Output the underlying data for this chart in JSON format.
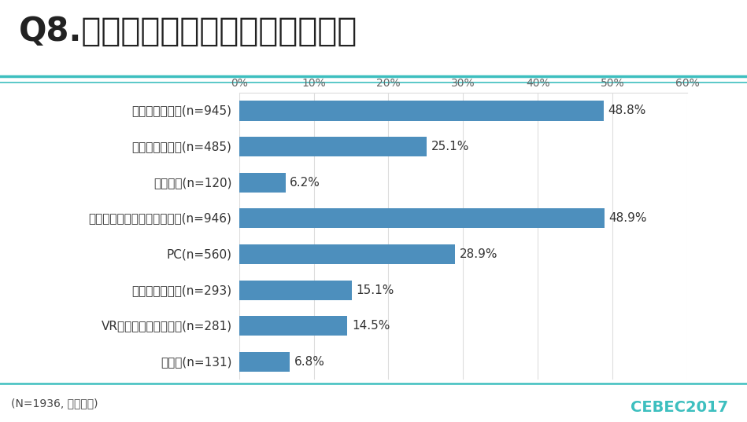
{
  "title": "Q8.従事しているプラットフォーム",
  "categories": [
    "据置型ゲーム機(n=945)",
    "携帯型ゲーム機(n=485)",
    "携帯電話(n=120)",
    "スマートフォン、タブレット(n=946)",
    "PC(n=560)",
    "業務用ゲーム機(n=293)",
    "VR、ウェアラブル端末(n=281)",
    "その他(n=131)"
  ],
  "values": [
    48.8,
    25.1,
    6.2,
    48.9,
    28.9,
    15.1,
    14.5,
    6.8
  ],
  "bar_color": "#4d8fbd",
  "background_color": "#ffffff",
  "title_color": "#222222",
  "label_color": "#333333",
  "footer_text": "(N=1936, 複数回答)",
  "cebec_text": "CEBEC2017",
  "xlim": [
    0,
    60
  ],
  "xticks": [
    0,
    10,
    20,
    30,
    40,
    50,
    60
  ],
  "xtick_labels": [
    "0%",
    "10%",
    "20%",
    "30%",
    "40%",
    "50%",
    "60%"
  ],
  "title_fontsize": 30,
  "category_fontsize": 11,
  "value_fontsize": 11,
  "footer_fontsize": 10,
  "bar_height": 0.55,
  "underline_color1": "#3dbfbf",
  "underline_color2": "#3dbfbf",
  "grid_color": "#dddddd",
  "cebec_color": "#3dbfbf"
}
